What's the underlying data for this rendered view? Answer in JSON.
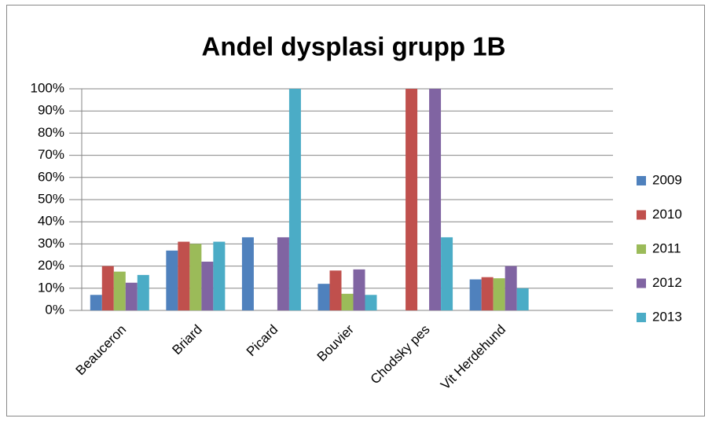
{
  "chart_data": {
    "type": "bar",
    "title": "Andel dysplasi grupp 1B",
    "categories": [
      "Beauceron",
      "Briard",
      "Picard",
      "Bouvier",
      "Chodsky pes",
      "Vit Herdehund",
      null
    ],
    "series": [
      {
        "name": "2009",
        "color": "#4f81bd",
        "values": [
          7,
          27,
          33,
          12,
          0,
          14,
          null
        ]
      },
      {
        "name": "2010",
        "color": "#c0504d",
        "values": [
          20,
          31,
          0,
          18,
          100,
          15,
          null
        ]
      },
      {
        "name": "2011",
        "color": "#9bbb59",
        "values": [
          17.5,
          30,
          0,
          7.5,
          0,
          14.5,
          null
        ]
      },
      {
        "name": "2012",
        "color": "#8064a2",
        "values": [
          12.5,
          22,
          33,
          18.5,
          100,
          20,
          null
        ]
      },
      {
        "name": "2013",
        "color": "#4bacc6",
        "values": [
          16,
          31,
          100,
          7,
          33,
          10,
          null
        ]
      }
    ],
    "ylim": [
      0,
      100
    ],
    "yticks": [
      {
        "value": 0,
        "label": "0%"
      },
      {
        "value": 10,
        "label": "10%"
      },
      {
        "value": 20,
        "label": "20%"
      },
      {
        "value": 30,
        "label": "30%"
      },
      {
        "value": 40,
        "label": "40%"
      },
      {
        "value": 50,
        "label": "50%"
      },
      {
        "value": 60,
        "label": "60%"
      },
      {
        "value": 70,
        "label": "70%"
      },
      {
        "value": 80,
        "label": "80%"
      },
      {
        "value": 90,
        "label": "90%"
      },
      {
        "value": 100,
        "label": "100%"
      }
    ],
    "grid": true,
    "legend": "right"
  }
}
